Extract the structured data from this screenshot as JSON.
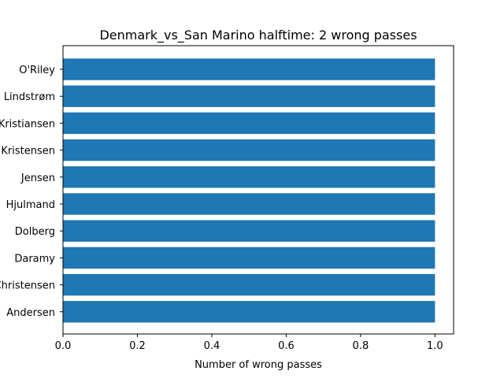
{
  "chart_data": {
    "type": "bar",
    "orientation": "horizontal",
    "title": "Denmark_vs_San Marino halftime: 2 wrong passes",
    "xlabel": "Number of wrong passes",
    "ylabel": "",
    "categories": [
      "O'Riley",
      "Lindstrøm",
      "Kristiansen",
      "Kristensen",
      "Jensen",
      "Hjulmand",
      "Dolberg",
      "Daramy",
      "Christensen",
      "Andersen"
    ],
    "values": [
      1,
      1,
      1,
      1,
      1,
      1,
      1,
      1,
      1,
      1
    ],
    "xlim": [
      0,
      1.05
    ],
    "xticks": [
      0.0,
      0.2,
      0.4,
      0.6,
      0.8,
      1.0
    ],
    "xtick_labels": [
      "0.0",
      "0.2",
      "0.4",
      "0.6",
      "0.8",
      "1.0"
    ],
    "bar_color": "#1f77b4",
    "grid": false
  }
}
